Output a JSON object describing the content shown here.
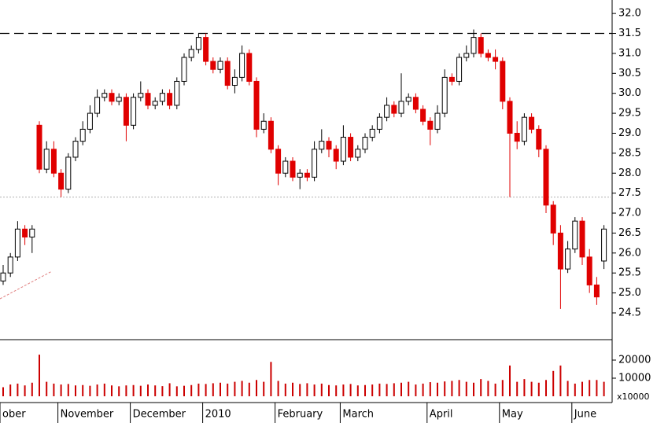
{
  "chart_data": {
    "type": "candlestick",
    "categories": [
      "ober",
      null,
      null,
      null,
      null,
      null,
      null,
      null,
      "November",
      null,
      null,
      null,
      null,
      null,
      null,
      null,
      null,
      null,
      "December",
      null,
      null,
      null,
      null,
      null,
      null,
      null,
      null,
      null,
      "2010",
      null,
      null,
      null,
      null,
      null,
      null,
      null,
      null,
      null,
      "February",
      null,
      null,
      null,
      null,
      null,
      null,
      null,
      null,
      "March",
      null,
      null,
      null,
      null,
      null,
      null,
      null,
      null,
      null,
      null,
      null,
      "April",
      null,
      null,
      null,
      null,
      null,
      null,
      null,
      null,
      null,
      "May",
      null,
      null,
      null,
      null,
      null,
      null,
      null,
      null,
      null,
      "June",
      null,
      null,
      null,
      null
    ],
    "open": [
      25.3,
      25.5,
      25.9,
      26.6,
      26.4,
      29.2,
      28.1,
      28.6,
      28.0,
      27.6,
      28.4,
      28.8,
      29.1,
      29.5,
      29.9,
      30.0,
      29.8,
      29.9,
      29.2,
      29.9,
      30.0,
      29.7,
      29.8,
      30.0,
      29.7,
      30.3,
      30.9,
      31.1,
      31.4,
      30.8,
      30.6,
      30.8,
      30.2,
      30.4,
      31.0,
      30.3,
      29.1,
      29.3,
      28.6,
      28.0,
      28.3,
      27.9,
      28.0,
      27.9,
      28.6,
      28.8,
      28.6,
      28.3,
      28.9,
      28.4,
      28.6,
      28.9,
      29.1,
      29.4,
      29.7,
      29.5,
      29.8,
      29.9,
      29.6,
      29.3,
      29.1,
      29.5,
      30.4,
      30.3,
      30.9,
      31.0,
      31.4,
      31.0,
      30.9,
      30.8,
      29.8,
      29.0,
      28.8,
      29.4,
      29.1,
      28.6,
      27.2,
      26.5,
      25.6,
      26.1,
      26.8,
      25.9,
      25.2,
      25.8
    ],
    "high": [
      25.7,
      26.0,
      26.8,
      26.7,
      26.7,
      29.3,
      28.8,
      28.8,
      28.1,
      28.5,
      28.9,
      29.3,
      29.7,
      30.1,
      30.1,
      30.1,
      30.0,
      30.0,
      30.0,
      30.3,
      30.1,
      29.9,
      30.1,
      30.1,
      30.4,
      31.0,
      31.2,
      31.5,
      31.5,
      30.9,
      30.9,
      30.9,
      30.6,
      31.2,
      31.1,
      30.4,
      29.5,
      29.4,
      28.7,
      28.4,
      28.4,
      28.1,
      28.1,
      28.8,
      29.1,
      28.9,
      28.7,
      29.2,
      29.0,
      28.7,
      29.0,
      29.2,
      29.5,
      29.9,
      29.8,
      30.5,
      30.0,
      30.0,
      29.7,
      29.4,
      29.7,
      30.6,
      30.5,
      31.0,
      31.2,
      31.6,
      31.5,
      31.1,
      31.1,
      30.9,
      29.9,
      29.3,
      29.5,
      29.5,
      29.2,
      28.7,
      27.3,
      26.7,
      26.3,
      26.9,
      26.9,
      26.1,
      25.4,
      26.7
    ],
    "low": [
      25.2,
      25.4,
      25.8,
      26.2,
      26.0,
      28.0,
      28.0,
      27.9,
      27.4,
      27.5,
      28.3,
      28.7,
      29.0,
      29.4,
      29.8,
      29.7,
      29.7,
      28.8,
      29.1,
      29.8,
      29.6,
      29.6,
      29.7,
      29.6,
      29.6,
      30.2,
      30.8,
      31.0,
      30.7,
      30.5,
      30.5,
      30.1,
      30.0,
      30.3,
      30.2,
      28.9,
      29.0,
      28.5,
      27.7,
      27.9,
      27.8,
      27.6,
      27.8,
      27.8,
      28.5,
      28.4,
      28.1,
      28.2,
      28.3,
      28.3,
      28.5,
      28.8,
      29.0,
      29.3,
      29.4,
      29.4,
      29.7,
      29.5,
      29.2,
      28.7,
      29.0,
      29.4,
      30.2,
      30.2,
      30.8,
      30.9,
      30.9,
      30.8,
      30.6,
      29.6,
      27.4,
      28.6,
      28.7,
      29.0,
      28.4,
      27.0,
      26.2,
      24.6,
      25.5,
      26.0,
      25.7,
      25.0,
      24.7,
      25.6
    ],
    "close": [
      25.5,
      25.9,
      26.6,
      26.4,
      26.6,
      28.1,
      28.6,
      28.0,
      27.6,
      28.4,
      28.8,
      29.1,
      29.5,
      29.9,
      30.0,
      29.8,
      29.9,
      29.2,
      29.9,
      30.0,
      29.7,
      29.8,
      30.0,
      29.7,
      30.3,
      30.9,
      31.1,
      31.4,
      30.8,
      30.6,
      30.8,
      30.2,
      30.4,
      31.0,
      30.3,
      29.1,
      29.3,
      28.6,
      28.0,
      28.3,
      27.9,
      28.0,
      27.9,
      28.6,
      28.8,
      28.6,
      28.3,
      28.9,
      28.4,
      28.6,
      28.9,
      29.1,
      29.4,
      29.7,
      29.5,
      29.8,
      29.9,
      29.6,
      29.3,
      29.1,
      29.5,
      30.4,
      30.3,
      30.9,
      31.0,
      31.4,
      31.0,
      30.9,
      30.8,
      29.8,
      29.0,
      28.8,
      29.4,
      29.1,
      28.6,
      27.2,
      26.5,
      25.6,
      26.1,
      26.8,
      25.9,
      25.2,
      24.9,
      26.6
    ],
    "up_color": "#ffffff",
    "down_color": "#e00000",
    "ylim": [
      23.83,
      32.18
    ],
    "yticks": [
      {
        "value": 24.5,
        "label": "24.5"
      },
      {
        "value": 25,
        "label": "25.0"
      },
      25.5,
      {
        "value": 26,
        "label": "26.0"
      },
      26.5,
      {
        "value": 27,
        "label": "27.0"
      },
      27.5,
      {
        "value": 28,
        "label": "28.0"
      },
      28.5,
      {
        "value": 29,
        "label": "29.0"
      },
      29.5,
      {
        "value": 30,
        "label": "30.0"
      },
      30.5,
      {
        "value": 31,
        "label": "31.0"
      },
      31.5,
      {
        "value": 32,
        "label": "32.0"
      }
    ],
    "hlines": [
      {
        "value": 31.5,
        "style": "dashed",
        "color": "#000000"
      },
      {
        "value": 27.4,
        "style": "dotted",
        "color": "#b0b0b0"
      }
    ],
    "volume": {
      "values": [
        5000,
        6500,
        7000,
        6000,
        7500,
        23000,
        8000,
        7000,
        6500,
        6800,
        6000,
        6200,
        5800,
        6500,
        7000,
        6000,
        5500,
        6000,
        6200,
        5800,
        6500,
        6000,
        5600,
        7200,
        5500,
        5800,
        6200,
        7000,
        6800,
        7200,
        7500,
        7000,
        8000,
        8500,
        7500,
        9000,
        8000,
        19000,
        8500,
        7000,
        7500,
        6800,
        7200,
        6500,
        7000,
        6200,
        6000,
        6500,
        6800,
        6000,
        6200,
        6500,
        7000,
        6800,
        7200,
        7500,
        8000,
        6500,
        7000,
        7800,
        7500,
        8200,
        8500,
        9000,
        8000,
        7500,
        9500,
        8500,
        7000,
        9000,
        17000,
        8000,
        9500,
        8000,
        7500,
        9000,
        14000,
        17000,
        8500,
        7000,
        8000,
        9000,
        9000,
        8000
      ],
      "color": "#cc0000",
      "ylim": [
        -3480,
        31300
      ],
      "yticks": [
        10000,
        20000
      ],
      "scale_label": "x10000"
    }
  }
}
